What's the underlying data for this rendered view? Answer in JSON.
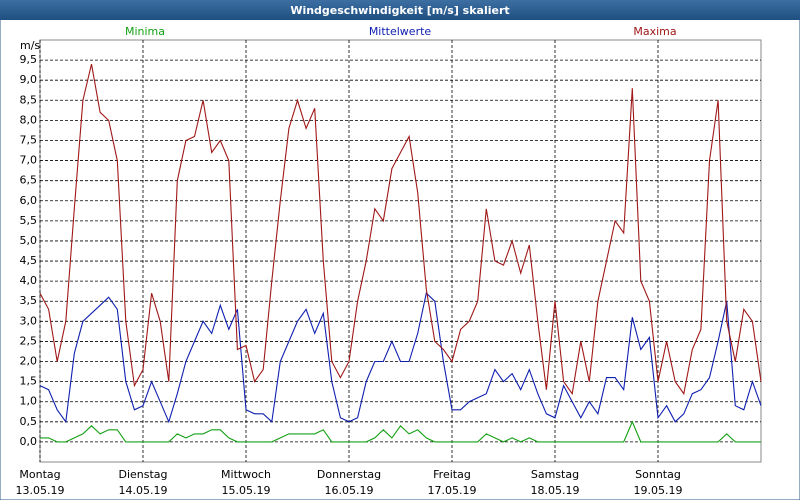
{
  "chart_data": {
    "type": "line",
    "title": "Windgeschwindigkeit [m/s] skaliert",
    "ylabel": "m/s",
    "xlim": [
      0,
      168
    ],
    "ylim": [
      -0.5,
      10
    ],
    "grid": true,
    "yticks": [
      {
        "value": 0,
        "label": "0,0"
      },
      {
        "value": 0.5,
        "label": "0,5"
      },
      {
        "value": 1,
        "label": "1,0"
      },
      {
        "value": 1.5,
        "label": "1,5"
      },
      {
        "value": 2,
        "label": "2,0"
      },
      {
        "value": 2.5,
        "label": "2,5"
      },
      {
        "value": 3,
        "label": "3,0"
      },
      {
        "value": 3.5,
        "label": "3,5"
      },
      {
        "value": 4,
        "label": "4,0"
      },
      {
        "value": 4.5,
        "label": "4,5"
      },
      {
        "value": 5,
        "label": "5,0"
      },
      {
        "value": 5.5,
        "label": "5,5"
      },
      {
        "value": 6,
        "label": "6,0"
      },
      {
        "value": 6.5,
        "label": "6,5"
      },
      {
        "value": 7,
        "label": "7,0"
      },
      {
        "value": 7.5,
        "label": "7,5"
      },
      {
        "value": 8,
        "label": "8,0"
      },
      {
        "value": 8.5,
        "label": "8,5"
      },
      {
        "value": 9,
        "label": "9,0"
      },
      {
        "value": 9.5,
        "label": "9,5"
      }
    ],
    "xticks": [
      {
        "value": 0,
        "label": "Montag",
        "date": "13.05.19"
      },
      {
        "value": 24,
        "label": "Dienstag",
        "date": "14.05.19"
      },
      {
        "value": 48,
        "label": "Mittwoch",
        "date": "15.05.19"
      },
      {
        "value": 72,
        "label": "Donnerstag",
        "date": "16.05.19"
      },
      {
        "value": 96,
        "label": "Freitag",
        "date": "17.05.19"
      },
      {
        "value": 120,
        "label": "Samstag",
        "date": "18.05.19"
      },
      {
        "value": 144,
        "label": "Sonntag",
        "date": "19.05.19"
      }
    ],
    "x": [
      0,
      2,
      4,
      6,
      8,
      10,
      12,
      14,
      16,
      18,
      20,
      22,
      24,
      26,
      28,
      30,
      32,
      34,
      36,
      38,
      40,
      42,
      44,
      46,
      48,
      50,
      52,
      54,
      56,
      58,
      60,
      62,
      64,
      66,
      68,
      70,
      72,
      74,
      76,
      78,
      80,
      82,
      84,
      86,
      88,
      90,
      92,
      94,
      96,
      98,
      100,
      102,
      104,
      106,
      108,
      110,
      112,
      114,
      116,
      118,
      120,
      122,
      124,
      126,
      128,
      130,
      132,
      134,
      136,
      138,
      140,
      142,
      144,
      146,
      148,
      150,
      152,
      154,
      156,
      158,
      160,
      162,
      164,
      166,
      168
    ],
    "series": [
      {
        "name": "Minima",
        "color": "#14a014",
        "values": [
          0.1,
          0.1,
          0,
          0,
          0.1,
          0.2,
          0.4,
          0.2,
          0.3,
          0.3,
          0,
          0,
          0,
          0,
          0,
          0,
          0.2,
          0.1,
          0.2,
          0.2,
          0.3,
          0.3,
          0.1,
          0,
          0,
          0,
          0,
          0,
          0.1,
          0.2,
          0.2,
          0.2,
          0.2,
          0.3,
          0,
          0,
          0,
          0,
          0,
          0.1,
          0.3,
          0.1,
          0.4,
          0.2,
          0.3,
          0.1,
          0,
          0,
          0,
          0,
          0,
          0,
          0.2,
          0.1,
          0,
          0.1,
          0,
          0.1,
          0,
          0,
          0,
          0,
          0,
          0,
          0,
          0,
          0,
          0,
          0,
          0.5,
          0,
          0,
          0,
          0,
          0,
          0,
          0,
          0,
          0,
          0,
          0.2,
          0,
          0,
          0,
          0
        ]
      },
      {
        "name": "Mittelwerte",
        "color": "#1020b0",
        "values": [
          1.4,
          1.3,
          0.8,
          0.5,
          2.2,
          3.0,
          3.2,
          3.4,
          3.6,
          3.3,
          1.5,
          0.8,
          0.9,
          1.5,
          1.0,
          0.5,
          1.2,
          2.0,
          2.5,
          3.0,
          2.7,
          3.4,
          2.8,
          3.3,
          0.8,
          0.7,
          0.7,
          0.5,
          2.0,
          2.5,
          3.0,
          3.3,
          2.7,
          3.2,
          1.5,
          0.6,
          0.5,
          0.6,
          1.5,
          2.0,
          2.0,
          2.5,
          2.0,
          2.0,
          2.7,
          3.7,
          3.5,
          2.0,
          0.8,
          0.8,
          1.0,
          1.1,
          1.2,
          1.8,
          1.5,
          1.7,
          1.3,
          1.8,
          1.2,
          0.7,
          0.6,
          1.4,
          1.0,
          0.6,
          1.0,
          0.7,
          1.6,
          1.6,
          1.3,
          3.1,
          2.3,
          2.6,
          0.6,
          0.9,
          0.5,
          0.7,
          1.2,
          1.3,
          1.6,
          2.5,
          3.5,
          0.9,
          0.8,
          1.5,
          0.9
        ]
      },
      {
        "name": "Maxima",
        "color": "#a01818",
        "values": [
          3.7,
          3.3,
          2.0,
          3.0,
          5.8,
          8.5,
          9.4,
          8.2,
          8.0,
          7.0,
          3.0,
          1.4,
          1.8,
          3.7,
          3.0,
          1.5,
          6.5,
          7.5,
          7.6,
          8.5,
          7.2,
          7.5,
          7.0,
          2.3,
          2.4,
          1.5,
          1.8,
          4.0,
          6.0,
          7.8,
          8.5,
          7.8,
          8.3,
          4.5,
          2.0,
          1.6,
          2.0,
          3.5,
          4.5,
          5.8,
          5.5,
          6.8,
          7.2,
          7.6,
          6.2,
          3.8,
          2.5,
          2.3,
          2.0,
          2.8,
          3.0,
          3.5,
          5.8,
          4.5,
          4.4,
          5.0,
          4.2,
          4.9,
          3.0,
          1.3,
          3.5,
          1.5,
          1.2,
          2.5,
          1.5,
          3.5,
          4.5,
          5.5,
          5.2,
          8.8,
          4.0,
          3.5,
          1.5,
          2.5,
          1.5,
          1.2,
          2.3,
          2.8,
          7.0,
          8.5,
          3.0,
          2.0,
          3.3,
          3.0,
          1.5
        ]
      }
    ]
  }
}
